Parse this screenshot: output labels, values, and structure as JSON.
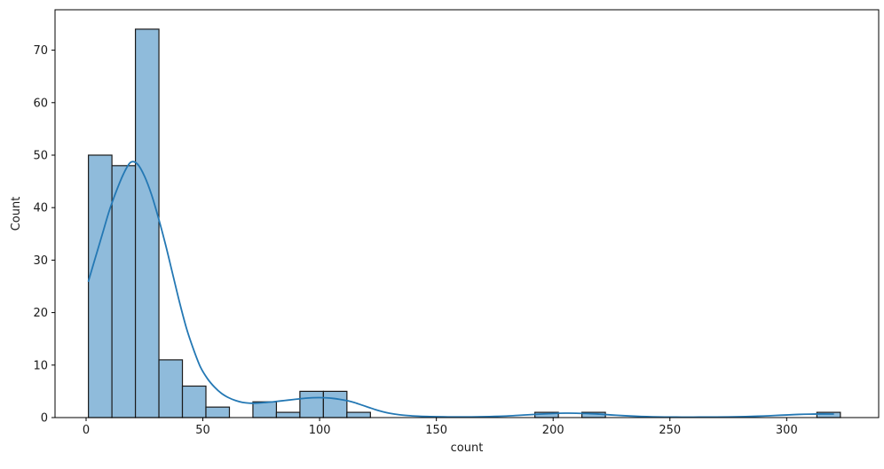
{
  "figure": {
    "title": "",
    "xlabel": "count",
    "ylabel": "Count"
  },
  "chart_data": {
    "type": "bar",
    "subtype": "histogram-with-kde",
    "title": "",
    "xlabel": "count",
    "ylabel": "Count",
    "grid": false,
    "legend_position": "none",
    "xlim": [
      -13.3,
      339.4
    ],
    "ylim": [
      0,
      77.7
    ],
    "xticks": [
      0,
      50,
      100,
      150,
      200,
      250,
      300
    ],
    "yticks": [
      0,
      10,
      20,
      30,
      40,
      50,
      60,
      70
    ],
    "bin_start": 1,
    "bin_width": 10.0625,
    "bin_counts": [
      50,
      48,
      74,
      11,
      6,
      2,
      0,
      3,
      1,
      5,
      5,
      1,
      0,
      0,
      0,
      0,
      0,
      0,
      0,
      1,
      0,
      1,
      0,
      0,
      0,
      0,
      0,
      0,
      0,
      0,
      0,
      1
    ],
    "kde_points": [
      [
        1,
        26
      ],
      [
        4,
        30.5
      ],
      [
        7,
        35
      ],
      [
        10,
        39.5
      ],
      [
        13,
        43.2
      ],
      [
        16,
        46.4
      ],
      [
        19,
        48.6
      ],
      [
        22,
        48.3
      ],
      [
        25,
        46
      ],
      [
        28,
        42.5
      ],
      [
        31,
        38
      ],
      [
        34,
        33
      ],
      [
        37,
        27.5
      ],
      [
        40,
        22
      ],
      [
        43,
        17
      ],
      [
        46,
        13
      ],
      [
        49,
        9.6
      ],
      [
        52,
        7.4
      ],
      [
        55,
        5.8
      ],
      [
        58,
        4.6
      ],
      [
        61,
        3.8
      ],
      [
        64,
        3.25
      ],
      [
        67,
        2.9
      ],
      [
        70,
        2.75
      ],
      [
        73,
        2.75
      ],
      [
        76,
        2.85
      ],
      [
        79,
        2.95
      ],
      [
        82,
        3.1
      ],
      [
        85,
        3.25
      ],
      [
        88,
        3.4
      ],
      [
        91,
        3.55
      ],
      [
        94,
        3.7
      ],
      [
        97,
        3.78
      ],
      [
        100,
        3.8
      ],
      [
        103,
        3.76
      ],
      [
        106,
        3.64
      ],
      [
        109,
        3.45
      ],
      [
        112,
        3.2
      ],
      [
        115,
        2.85
      ],
      [
        118,
        2.4
      ],
      [
        121,
        1.95
      ],
      [
        124,
        1.5
      ],
      [
        127,
        1.12
      ],
      [
        130,
        0.82
      ],
      [
        134,
        0.55
      ],
      [
        138,
        0.38
      ],
      [
        142,
        0.27
      ],
      [
        146,
        0.2
      ],
      [
        150,
        0.16
      ],
      [
        155,
        0.13
      ],
      [
        160,
        0.12
      ],
      [
        165,
        0.13
      ],
      [
        170,
        0.16
      ],
      [
        175,
        0.22
      ],
      [
        180,
        0.3
      ],
      [
        185,
        0.42
      ],
      [
        190,
        0.55
      ],
      [
        195,
        0.68
      ],
      [
        200,
        0.78
      ],
      [
        205,
        0.84
      ],
      [
        210,
        0.83
      ],
      [
        215,
        0.77
      ],
      [
        220,
        0.65
      ],
      [
        225,
        0.5
      ],
      [
        230,
        0.37
      ],
      [
        235,
        0.26
      ],
      [
        240,
        0.18
      ],
      [
        245,
        0.13
      ],
      [
        250,
        0.1
      ],
      [
        255,
        0.09
      ],
      [
        260,
        0.09
      ],
      [
        265,
        0.1
      ],
      [
        270,
        0.11
      ],
      [
        275,
        0.13
      ],
      [
        280,
        0.17
      ],
      [
        285,
        0.22
      ],
      [
        290,
        0.3
      ],
      [
        295,
        0.4
      ],
      [
        300,
        0.5
      ],
      [
        305,
        0.6
      ],
      [
        310,
        0.66
      ],
      [
        315,
        0.69
      ],
      [
        320,
        0.67
      ]
    ],
    "colors": {
      "bar_fill": "#8fbbdb",
      "bar_edge": "#1a1a1a",
      "kde_line": "#2478b4",
      "spine": "#000000",
      "tick_text": "#1a1a1a",
      "background": "#ffffff"
    }
  }
}
